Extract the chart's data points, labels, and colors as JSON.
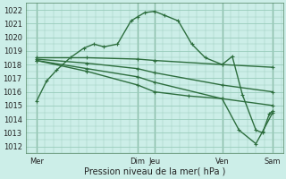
{
  "title": "",
  "xlabel": "Pression niveau de la mer( hPa )",
  "ylabel": "",
  "bg_color": "#cceee8",
  "grid_color": "#99ccbb",
  "line_color": "#2d6e3e",
  "ylim": [
    1011.5,
    1022.5
  ],
  "xlim": [
    -0.3,
    7.3
  ],
  "yticks": [
    1012,
    1013,
    1014,
    1015,
    1016,
    1017,
    1018,
    1019,
    1020,
    1021,
    1022
  ],
  "vline_positions_labels": [
    [
      0,
      "Mer"
    ],
    [
      3,
      "Dim"
    ],
    [
      3.5,
      "Jeu"
    ],
    [
      5.5,
      "Ven"
    ],
    [
      7,
      "Sam"
    ]
  ],
  "vline_positions": [
    0,
    3,
    3.5,
    5.5,
    7
  ],
  "xtick_positions": [
    0,
    3,
    3.5,
    5.5,
    7
  ],
  "xtick_labels": [
    "Mer",
    "Dim",
    "Jeu",
    "Ven",
    "Sam"
  ],
  "lines": [
    {
      "x": [
        0,
        0.3,
        0.6,
        1.0,
        1.4,
        1.7,
        2.0,
        2.4,
        2.8,
        3.0,
        3.2,
        3.5,
        3.8,
        4.2,
        4.6,
        5.0,
        5.5,
        5.8,
        6.1,
        6.5,
        6.7,
        6.9,
        7.0
      ],
      "y": [
        1015.3,
        1016.8,
        1017.6,
        1018.5,
        1019.2,
        1019.5,
        1019.3,
        1019.5,
        1021.2,
        1021.5,
        1021.8,
        1021.9,
        1021.6,
        1021.2,
        1019.5,
        1018.5,
        1018.0,
        1018.6,
        1015.8,
        1013.2,
        1013.0,
        1014.4,
        1014.6
      ]
    },
    {
      "x": [
        0,
        1.5,
        3.0,
        3.5,
        5.5,
        7.0
      ],
      "y": [
        1018.5,
        1018.5,
        1018.4,
        1018.3,
        1018.0,
        1017.8
      ]
    },
    {
      "x": [
        0,
        1.5,
        3.0,
        3.5,
        5.5,
        7.0
      ],
      "y": [
        1018.4,
        1018.1,
        1017.7,
        1017.4,
        1016.5,
        1016.0
      ]
    },
    {
      "x": [
        0,
        1.5,
        3.0,
        3.5,
        5.5,
        7.0
      ],
      "y": [
        1018.3,
        1017.7,
        1017.1,
        1016.7,
        1015.5,
        1015.0
      ]
    },
    {
      "x": [
        0,
        1.5,
        3.0,
        3.5,
        4.5,
        5.5,
        6.0,
        6.5,
        6.7,
        7.0
      ],
      "y": [
        1018.3,
        1017.5,
        1016.5,
        1016.0,
        1015.7,
        1015.5,
        1013.2,
        1012.2,
        1013.1,
        1014.5
      ]
    }
  ]
}
